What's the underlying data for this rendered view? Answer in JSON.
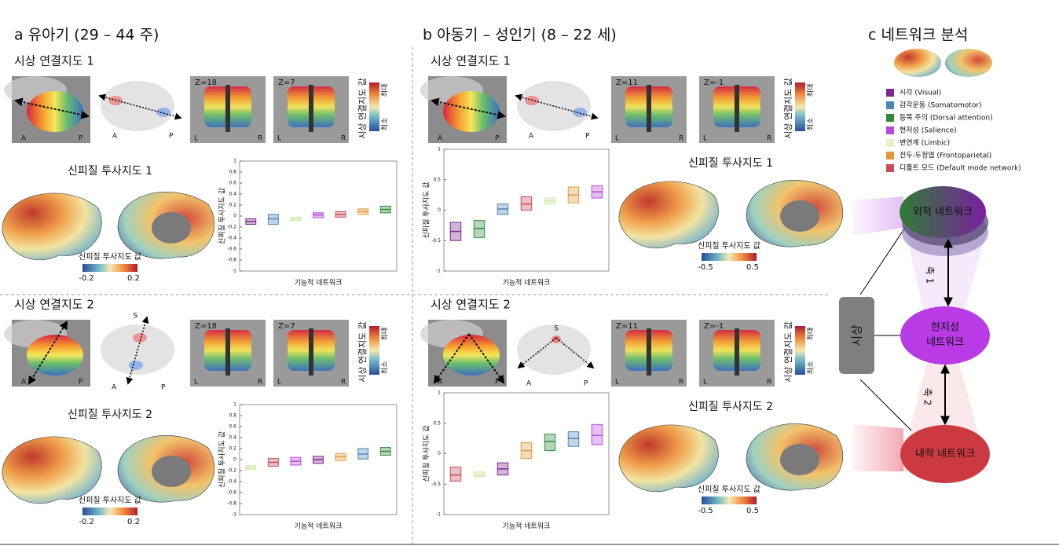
{
  "common": {
    "anterior": "A",
    "posterior": "P",
    "left": "L",
    "right": "R",
    "superior": "S",
    "conn_value": "시상 연결지도 값",
    "max": "최대",
    "min": "최소",
    "proj_value": "신피질 투사지도 값",
    "x_label": "기능적 네트워크"
  },
  "panel_a": {
    "title": "a 유아기 (29 – 44 주)",
    "rows": [
      {
        "connectivity_title": "시상 연결지도 1",
        "slices": [
          "Z=18",
          "Z=7"
        ],
        "projection_title": "신피질 투사지도 1",
        "colorbar_ticks": [
          -0.2,
          0.2
        ],
        "boxplot": {
          "type": "box",
          "ylim": [
            -1,
            1
          ],
          "yticks": [
            -1,
            -0.8,
            -0.6,
            -0.4,
            -0.2,
            0,
            0.2,
            0.4,
            0.6,
            0.8,
            1
          ],
          "boxes": [
            {
              "color": "#7b2a8e",
              "q1": -0.15,
              "median": -0.1,
              "q3": -0.05
            },
            {
              "color": "#4a86b5",
              "q1": -0.15,
              "median": -0.05,
              "q3": 0.03
            },
            {
              "color": "#cde8a5",
              "q1": -0.08,
              "median": -0.05,
              "q3": -0.02
            },
            {
              "color": "#b54be0",
              "q1": -0.03,
              "median": 0.02,
              "q3": 0.06
            },
            {
              "color": "#c94a5a",
              "q1": -0.02,
              "median": 0.03,
              "q3": 0.08
            },
            {
              "color": "#e39a3c",
              "q1": 0.03,
              "median": 0.08,
              "q3": 0.13
            },
            {
              "color": "#2f8a3a",
              "q1": 0.06,
              "median": 0.12,
              "q3": 0.18
            }
          ]
        }
      },
      {
        "connectivity_title": "시상 연결지도 2",
        "slices": [
          "Z=18",
          "Z=7"
        ],
        "projection_title": "신피질 투사지도 2",
        "colorbar_ticks": [
          -0.2,
          0.2
        ],
        "boxplot": {
          "type": "box",
          "ylim": [
            -1,
            1
          ],
          "yticks": [
            -1,
            -0.8,
            -0.6,
            -0.4,
            -0.2,
            0,
            0.2,
            0.4,
            0.6,
            0.8,
            1
          ],
          "boxes": [
            {
              "color": "#cde8a5",
              "q1": -0.18,
              "median": -0.15,
              "q3": -0.11
            },
            {
              "color": "#c94a5a",
              "q1": -0.12,
              "median": -0.05,
              "q3": 0.02
            },
            {
              "color": "#b54be0",
              "q1": -0.1,
              "median": -0.03,
              "q3": 0.04
            },
            {
              "color": "#7b2a8e",
              "q1": -0.07,
              "median": 0,
              "q3": 0.06
            },
            {
              "color": "#e39a3c",
              "q1": -0.02,
              "median": 0.05,
              "q3": 0.11
            },
            {
              "color": "#4a86b5",
              "q1": 0.01,
              "median": 0.1,
              "q3": 0.2
            },
            {
              "color": "#2f8a3a",
              "q1": 0.08,
              "median": 0.15,
              "q3": 0.22
            }
          ]
        }
      }
    ]
  },
  "panel_b": {
    "title": "b 아동기 – 성인기 (8 – 22 세)",
    "rows": [
      {
        "connectivity_title": "시상 연결지도 1",
        "slices": [
          "Z=11",
          "Z=-1"
        ],
        "projection_title": "신피질 투사지도 1",
        "colorbar_ticks": [
          -0.5,
          0.5
        ],
        "boxplot": {
          "type": "box",
          "ylim": [
            -1,
            1
          ],
          "yticks": [
            -1,
            -0.5,
            0,
            0.5,
            1
          ],
          "boxes": [
            {
              "color": "#7b2a8e",
              "q1": -0.5,
              "median": -0.35,
              "q3": -0.2
            },
            {
              "color": "#2f8a3a",
              "q1": -0.45,
              "median": -0.3,
              "q3": -0.17
            },
            {
              "color": "#4a86b5",
              "q1": -0.07,
              "median": 0.02,
              "q3": 0.1
            },
            {
              "color": "#c94a5a",
              "q1": 0,
              "median": 0.1,
              "q3": 0.22
            },
            {
              "color": "#cde8a5",
              "q1": 0.1,
              "median": 0.15,
              "q3": 0.2
            },
            {
              "color": "#e39a3c",
              "q1": 0.12,
              "median": 0.25,
              "q3": 0.38
            },
            {
              "color": "#b54be0",
              "q1": 0.2,
              "median": 0.3,
              "q3": 0.4
            }
          ]
        }
      },
      {
        "connectivity_title": "시상 연결지도 2",
        "slices": [
          "Z=11",
          "Z=-1"
        ],
        "projection_title": "신피질 투사지도 2",
        "colorbar_ticks": [
          -0.5,
          0.5
        ],
        "boxplot": {
          "type": "box",
          "ylim": [
            -1,
            1
          ],
          "yticks": [
            -1,
            -0.5,
            0,
            0.5,
            1
          ],
          "boxes": [
            {
              "color": "#c94a5a",
              "q1": -0.45,
              "median": -0.35,
              "q3": -0.22
            },
            {
              "color": "#cde8a5",
              "q1": -0.38,
              "median": -0.35,
              "q3": -0.3
            },
            {
              "color": "#7b2a8e",
              "q1": -0.35,
              "median": -0.25,
              "q3": -0.15
            },
            {
              "color": "#e39a3c",
              "q1": -0.08,
              "median": 0.05,
              "q3": 0.18
            },
            {
              "color": "#2f8a3a",
              "q1": 0.05,
              "median": 0.2,
              "q3": 0.32
            },
            {
              "color": "#4a86b5",
              "q1": 0.12,
              "median": 0.25,
              "q3": 0.36
            },
            {
              "color": "#b54be0",
              "q1": 0.15,
              "median": 0.3,
              "q3": 0.48
            }
          ]
        }
      }
    ]
  },
  "panel_c": {
    "title": "c 네트워크 분석",
    "legend": [
      {
        "label": "시각 (Visual)",
        "color": "#7b2a8e"
      },
      {
        "label": "감각운동 (Somatomotor)",
        "color": "#4a86b5"
      },
      {
        "label": "등쪽 주의 (Dorsal attention)",
        "color": "#2f8a3a"
      },
      {
        "label": "현저성 (Salience)",
        "color": "#b54be0"
      },
      {
        "label": "변연계 (Limbic)",
        "color": "#e6f2c4"
      },
      {
        "label": "전두-두정엽 (Frontoparietal)",
        "color": "#e39a3c"
      },
      {
        "label": "디폴트 모드 (Default mode network)",
        "color": "#c94a5a"
      }
    ],
    "nodes": {
      "extrinsic": "외적 네트워크",
      "salience": [
        "현저성",
        "네트워크"
      ],
      "intrinsic": "내적 네트워크",
      "thalamus": "시상"
    },
    "axes": [
      "축 1",
      "축 2"
    ]
  }
}
